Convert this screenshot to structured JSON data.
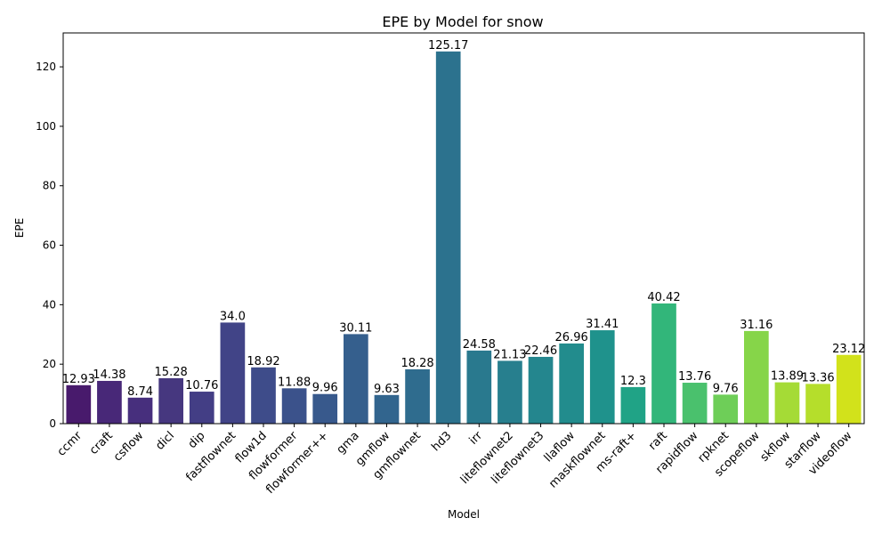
{
  "chart_data": {
    "type": "bar",
    "title": "EPE by Model for snow",
    "xlabel": "Model",
    "ylabel": "EPE",
    "ylim": [
      0,
      131.4
    ],
    "yticks": [
      0,
      20,
      40,
      60,
      80,
      100,
      120
    ],
    "categories": [
      "ccmr",
      "craft",
      "csflow",
      "dicl",
      "dip",
      "fastflownet",
      "flow1d",
      "flowformer",
      "flowformer++",
      "gma",
      "gmflow",
      "gmflownet",
      "hd3",
      "irr",
      "liteflownet2",
      "liteflownet3",
      "llaflow",
      "maskflownet",
      "ms-raft+",
      "raft",
      "rapidflow",
      "rpknet",
      "scopeflow",
      "skflow",
      "starflow",
      "videoflow"
    ],
    "values": [
      12.93,
      14.38,
      8.74,
      15.28,
      10.76,
      34.0,
      18.92,
      11.88,
      9.96,
      30.11,
      9.63,
      18.28,
      125.17,
      24.58,
      21.13,
      22.46,
      26.96,
      31.41,
      12.3,
      40.42,
      13.76,
      9.76,
      31.16,
      13.89,
      13.36,
      23.12
    ],
    "value_labels": [
      "12.93",
      "14.38",
      "8.74",
      "15.28",
      "10.76",
      "34.0",
      "18.92",
      "11.88",
      "9.96",
      "30.11",
      "9.63",
      "18.28",
      "125.17",
      "24.58",
      "21.13",
      "22.46",
      "26.96",
      "31.41",
      "12.3",
      "40.42",
      "13.76",
      "9.76",
      "31.16",
      "13.89",
      "13.36",
      "23.12"
    ],
    "colors": [
      "#481a6c",
      "#482878",
      "#472f7d",
      "#46377f",
      "#433e85",
      "#414487",
      "#3e4c8a",
      "#3b528b",
      "#38598c",
      "#355f8d",
      "#32658e",
      "#2f6c8e",
      "#2c728e",
      "#29798e",
      "#277f8e",
      "#24868e",
      "#228c8d",
      "#1f928c",
      "#20a386",
      "#32b67a",
      "#4ac16d",
      "#6ece58",
      "#86d549",
      "#a5db36",
      "#b5de2b",
      "#d2e21b"
    ],
    "grid": false,
    "legend": "none"
  }
}
